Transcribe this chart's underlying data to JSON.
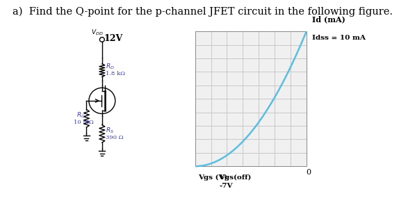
{
  "title": "a)  Find the Q-point for the p-channel JFET circuit in the following figure.",
  "title_fontsize": 10.5,
  "graph_ylabel": "Id (mA)",
  "idss_label": "Idss = 10 mA",
  "vgs_xlabel": "Vgs (V)",
  "vgs_off_label": "Vgs(off)",
  "vgs_off_val": "-7V",
  "vgs_off": -7,
  "idss": 10,
  "grid_color": "#c8c8c8",
  "curve_color": "#5bbde0",
  "axis_color": "#000000",
  "label_color": "#3a3aaa",
  "text_color": "#000000",
  "bg_color": "#ffffff",
  "zero_label": "0",
  "vdd_val": "12V",
  "rd_val": "1.8 kΩ",
  "rg_val": "10 MΩ",
  "rs_val": "390 Ω"
}
